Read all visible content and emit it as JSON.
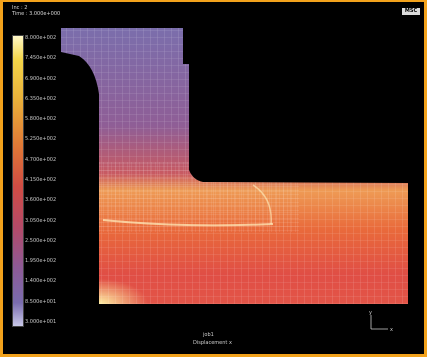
{
  "header": {
    "line1": "Inc : 2",
    "line2": "Time : 3.000e+000"
  },
  "logo_text": "MSC",
  "legend": {
    "ticks": [
      "8.000e+002",
      "7.450e+002",
      "6.900e+002",
      "6.350e+002",
      "5.800e+002",
      "5.250e+002",
      "4.700e+002",
      "4.150e+002",
      "3.600e+002",
      "3.050e+002",
      "2.500e+002",
      "1.950e+002",
      "1.400e+002",
      "8.500e+001",
      "3.000e+001"
    ]
  },
  "footer": {
    "line1": "job1",
    "line2": "Displacement x"
  },
  "triad": {
    "x": "x",
    "y": "y"
  }
}
